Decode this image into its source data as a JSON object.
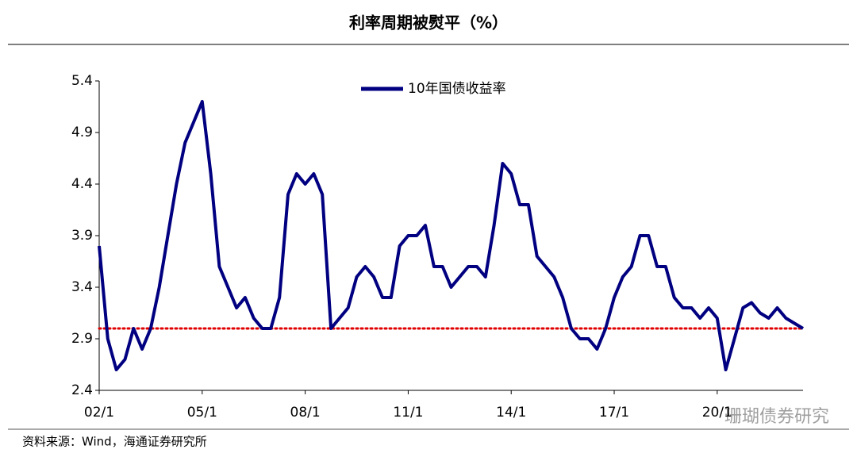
{
  "chart_data": {
    "type": "line",
    "title": "利率周期被熨平（%）",
    "source": "资料来源：Wind，海通证券研究所",
    "watermark": "珊瑚债券研究",
    "x": [
      2002,
      2002.25,
      2002.5,
      2002.75,
      2003,
      2003.25,
      2003.5,
      2003.75,
      2004,
      2004.25,
      2004.5,
      2004.75,
      2005,
      2005.25,
      2005.5,
      2005.75,
      2006,
      2006.25,
      2006.5,
      2006.75,
      2007,
      2007.25,
      2007.5,
      2007.75,
      2008,
      2008.25,
      2008.5,
      2008.75,
      2009,
      2009.25,
      2009.5,
      2009.75,
      2010,
      2010.25,
      2010.5,
      2010.75,
      2011,
      2011.25,
      2011.5,
      2011.75,
      2012,
      2012.25,
      2012.5,
      2012.75,
      2013,
      2013.25,
      2013.5,
      2013.75,
      2014,
      2014.25,
      2014.5,
      2014.75,
      2015,
      2015.25,
      2015.5,
      2015.75,
      2016,
      2016.25,
      2016.5,
      2016.75,
      2017,
      2017.25,
      2017.5,
      2017.75,
      2018,
      2018.25,
      2018.5,
      2018.75,
      2019,
      2019.25,
      2019.5,
      2019.75,
      2020,
      2020.25,
      2020.5,
      2020.75,
      2021,
      2021.25,
      2021.5,
      2021.75,
      2022,
      2022.25,
      2022.5
    ],
    "series": [
      {
        "name": "10年国债收益率",
        "color": "#000080",
        "values": [
          3.8,
          2.9,
          2.6,
          2.7,
          3.0,
          2.8,
          3.0,
          3.4,
          3.9,
          4.4,
          4.8,
          5.0,
          5.2,
          4.5,
          3.6,
          3.4,
          3.2,
          3.3,
          3.1,
          3.0,
          3.0,
          3.3,
          4.3,
          4.5,
          4.4,
          4.5,
          4.3,
          3.0,
          3.1,
          3.2,
          3.5,
          3.6,
          3.5,
          3.3,
          3.3,
          3.8,
          3.9,
          3.9,
          4.0,
          3.6,
          3.6,
          3.4,
          3.5,
          3.6,
          3.6,
          3.5,
          4.0,
          4.6,
          4.5,
          4.2,
          4.2,
          3.7,
          3.6,
          3.5,
          3.3,
          3.0,
          2.9,
          2.9,
          2.8,
          3.0,
          3.3,
          3.5,
          3.6,
          3.9,
          3.9,
          3.6,
          3.6,
          3.3,
          3.2,
          3.2,
          3.1,
          3.2,
          3.1,
          2.6,
          2.9,
          3.2,
          3.25,
          3.15,
          3.1,
          3.2,
          3.1,
          3.05,
          3.0
        ]
      }
    ],
    "hline": 3.0,
    "hline_color": "#e00000",
    "xlim": [
      2002,
      2022.5
    ],
    "xticks": [
      {
        "value": 2002,
        "label": "02/1"
      },
      {
        "value": 2005,
        "label": "05/1"
      },
      {
        "value": 2008,
        "label": "08/1"
      },
      {
        "value": 2011,
        "label": "11/1"
      },
      {
        "value": 2014,
        "label": "14/1"
      },
      {
        "value": 2017,
        "label": "17/1"
      },
      {
        "value": 2020,
        "label": "20/1"
      }
    ],
    "ylim": [
      2.4,
      5.4
    ],
    "yticks": [
      2.4,
      2.9,
      3.4,
      3.9,
      4.4,
      4.9,
      5.4
    ],
    "legend": "top"
  }
}
